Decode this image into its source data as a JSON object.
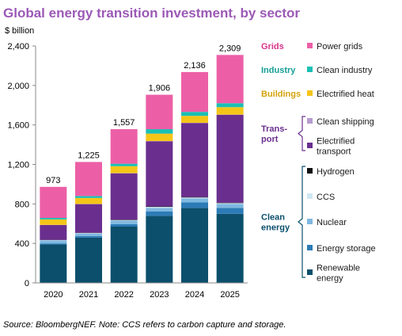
{
  "chart_data": {
    "type": "bar",
    "stacked": true,
    "title": "Global energy transition investment, by sector",
    "ylabel": "$ billion",
    "ylim": [
      0,
      2400
    ],
    "yticks": [
      0,
      400,
      800,
      1200,
      1600,
      2000,
      2400
    ],
    "ytick_labels": [
      "0",
      "400",
      "800",
      "1,200",
      "1,600",
      "2,000",
      "2,400"
    ],
    "categories": [
      "2020",
      "2021",
      "2022",
      "2023",
      "2024",
      "2025"
    ],
    "totals": [
      973,
      1225,
      1557,
      1906,
      2136,
      2309
    ],
    "total_labels": [
      "973",
      "1,225",
      "1,557",
      "1,906",
      "2,136",
      "2,309"
    ],
    "grid": false,
    "series": [
      {
        "name": "Renewable energy",
        "color": "#0b4f6c",
        "values": [
          390,
          460,
          570,
          680,
          760,
          700
        ]
      },
      {
        "name": "Energy storage",
        "color": "#2c7bb6",
        "values": [
          10,
          15,
          25,
          45,
          55,
          60
        ]
      },
      {
        "name": "Nuclear",
        "color": "#7fb8e0",
        "values": [
          30,
          25,
          35,
          35,
          40,
          40
        ]
      },
      {
        "name": "CCS",
        "color": "#cfe8f3",
        "values": [
          4,
          5,
          6,
          10,
          10,
          8
        ]
      },
      {
        "name": "Hydrogen",
        "color": "#111111",
        "values": [
          2,
          3,
          4,
          5,
          5,
          5
        ]
      },
      {
        "name": "Electrified transport",
        "color": "#6a2f8e",
        "values": [
          150,
          290,
          470,
          660,
          750,
          890
        ]
      },
      {
        "name": "Clean shipping",
        "color": "#b79ccf",
        "values": [
          2,
          2,
          2,
          2,
          2,
          2
        ]
      },
      {
        "name": "Electrified heat",
        "color": "#f5c518",
        "values": [
          55,
          60,
          70,
          75,
          70,
          75
        ]
      },
      {
        "name": "Clean industry",
        "color": "#1bbfb5",
        "values": [
          15,
          20,
          25,
          45,
          40,
          40
        ]
      },
      {
        "name": "Power grids",
        "color": "#ec5fa6",
        "values": [
          315,
          345,
          350,
          349,
          404,
          489
        ]
      }
    ],
    "legend": {
      "placement": "right",
      "groups": [
        {
          "label": "Grids",
          "color": "#d8338a",
          "items": [
            "Power grids"
          ]
        },
        {
          "label": "Industry",
          "color": "#159e96",
          "items": [
            "Clean industry"
          ]
        },
        {
          "label": "Buildings",
          "color": "#d4a20c",
          "items": [
            "Electrified heat"
          ]
        },
        {
          "label": "Transport",
          "label_lines": [
            "Trans-",
            "port"
          ],
          "color": "#6a2f8e",
          "items": [
            "Clean shipping",
            "Electrified transport"
          ]
        },
        {
          "label": "Clean energy",
          "label_lines": [
            "Clean",
            "energy"
          ],
          "color": "#0b4f6c",
          "items": [
            "Hydrogen",
            "CCS",
            "Nuclear",
            "Energy storage",
            "Renewable energy"
          ]
        }
      ],
      "item_lines": {
        "Power grids": [
          "Power grids"
        ],
        "Clean industry": [
          "Clean industry"
        ],
        "Electrified heat": [
          "Electrified heat"
        ],
        "Clean shipping": [
          "Clean shipping"
        ],
        "Electrified transport": [
          "Electrified",
          "transport"
        ],
        "Hydrogen": [
          "Hydrogen"
        ],
        "CCS": [
          "CCS"
        ],
        "Nuclear": [
          "Nuclear"
        ],
        "Energy storage": [
          "Energy storage"
        ],
        "Renewable energy": [
          "Renewable",
          "energy"
        ]
      }
    }
  },
  "colors": {
    "title": "#9b59b6",
    "axis": "#888888",
    "bracket": "#444444"
  },
  "source": "Source: BloombergNEF. Note: CCS refers to carbon capture and storage."
}
